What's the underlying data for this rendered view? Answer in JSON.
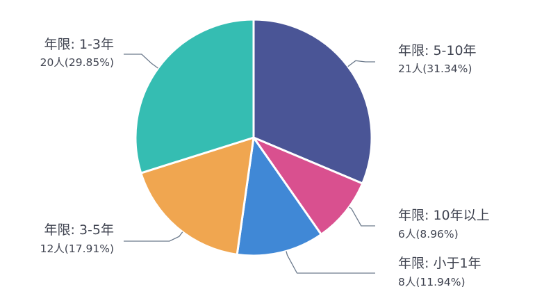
{
  "chart_data": {
    "type": "pie",
    "title": "",
    "start_angle_deg": 0,
    "direction": "clockwise",
    "unit": "人",
    "slices": [
      {
        "label": "年限: 5-10年",
        "value": 21,
        "percent": "31.34%",
        "count_text": "21人(31.34%)",
        "color": "#4a5596"
      },
      {
        "label": "年限: 10年以上",
        "value": 6,
        "percent": "8.96%",
        "count_text": "6人(8.96%)",
        "color": "#d9508f"
      },
      {
        "label": "年限: 小于1年",
        "value": 8,
        "percent": "11.94%",
        "count_text": "8人(11.94%)",
        "color": "#4088d6"
      },
      {
        "label": "年限: 3-5年",
        "value": 12,
        "percent": "17.91%",
        "count_text": "12人(17.91%)",
        "color": "#f0a650"
      },
      {
        "label": "年限: 1-3年",
        "value": 20,
        "percent": "29.85%",
        "count_text": "20人(29.85%)",
        "color": "#35bdb2"
      }
    ]
  },
  "colors": {
    "label_text": "#3f4350",
    "leader_line": "#6c7a8c",
    "slice_border": "#ffffff"
  }
}
